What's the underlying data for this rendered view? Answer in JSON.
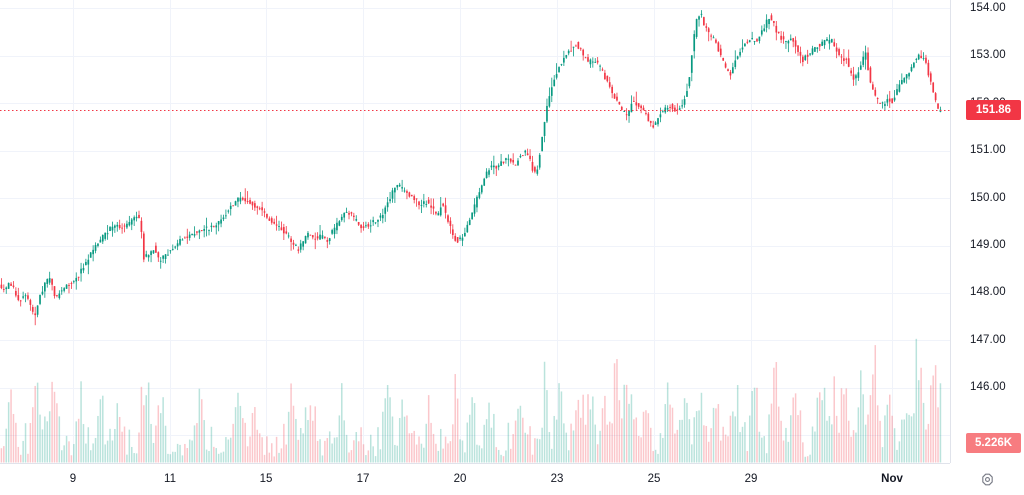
{
  "chart_data": {
    "type": "candlestick",
    "title": "",
    "last_price": "151.86",
    "last_volume": "5.226K",
    "x_axis": {
      "tick_labels": [
        "9",
        "11",
        "15",
        "17",
        "20",
        "23",
        "25",
        "29",
        "Nov"
      ],
      "tick_x": [
        73,
        170,
        266,
        363,
        460,
        557,
        654,
        751,
        892
      ]
    },
    "y_axis": {
      "tick_labels": [
        "154.00",
        "153.00",
        "152.00",
        "151.00",
        "150.00",
        "149.00",
        "148.00",
        "147.00",
        "146.00"
      ],
      "tick_prices": [
        154,
        153,
        152,
        151,
        150,
        149,
        148,
        147,
        146
      ],
      "grid_prices": [
        154,
        153,
        152,
        151,
        150,
        149,
        148,
        147,
        146,
        145
      ],
      "ylim": [
        144.42,
        154.17
      ]
    },
    "price_path_anchors": [
      [
        0,
        148.2
      ],
      [
        6,
        148.05
      ],
      [
        12,
        148.25
      ],
      [
        18,
        148.0
      ],
      [
        22,
        147.8
      ],
      [
        27,
        148.05
      ],
      [
        32,
        147.75
      ],
      [
        37,
        147.5
      ],
      [
        42,
        147.9
      ],
      [
        48,
        148.25
      ],
      [
        53,
        148.3
      ],
      [
        58,
        147.85
      ],
      [
        63,
        148.05
      ],
      [
        68,
        148.15
      ],
      [
        74,
        148.2
      ],
      [
        80,
        148.35
      ],
      [
        86,
        148.55
      ],
      [
        92,
        148.8
      ],
      [
        98,
        149.0
      ],
      [
        104,
        149.15
      ],
      [
        110,
        149.3
      ],
      [
        116,
        149.45
      ],
      [
        122,
        149.35
      ],
      [
        128,
        149.4
      ],
      [
        134,
        149.5
      ],
      [
        139,
        149.65
      ],
      [
        143,
        149.5
      ],
      [
        146,
        148.75
      ],
      [
        151,
        148.8
      ],
      [
        156,
        148.95
      ],
      [
        161,
        148.7
      ],
      [
        166,
        148.75
      ],
      [
        171,
        148.85
      ],
      [
        177,
        149.0
      ],
      [
        183,
        149.1
      ],
      [
        189,
        149.2
      ],
      [
        196,
        149.25
      ],
      [
        203,
        149.3
      ],
      [
        209,
        149.35
      ],
      [
        215,
        149.4
      ],
      [
        222,
        149.5
      ],
      [
        229,
        149.7
      ],
      [
        236,
        149.9
      ],
      [
        242,
        150.0
      ],
      [
        248,
        149.95
      ],
      [
        254,
        149.85
      ],
      [
        260,
        149.8
      ],
      [
        266,
        149.7
      ],
      [
        272,
        149.55
      ],
      [
        278,
        149.45
      ],
      [
        284,
        149.35
      ],
      [
        290,
        149.2
      ],
      [
        296,
        149.0
      ],
      [
        301,
        148.92
      ],
      [
        306,
        149.1
      ],
      [
        311,
        149.25
      ],
      [
        317,
        149.15
      ],
      [
        323,
        149.2
      ],
      [
        329,
        149.1
      ],
      [
        335,
        149.3
      ],
      [
        341,
        149.5
      ],
      [
        347,
        149.68
      ],
      [
        353,
        149.65
      ],
      [
        359,
        149.5
      ],
      [
        365,
        149.38
      ],
      [
        371,
        149.42
      ],
      [
        377,
        149.52
      ],
      [
        383,
        149.6
      ],
      [
        389,
        149.85
      ],
      [
        394,
        150.1
      ],
      [
        399,
        150.28
      ],
      [
        405,
        150.18
      ],
      [
        411,
        150.08
      ],
      [
        417,
        149.95
      ],
      [
        423,
        149.87
      ],
      [
        429,
        149.92
      ],
      [
        435,
        149.75
      ],
      [
        440,
        149.62
      ],
      [
        444,
        149.9
      ],
      [
        449,
        149.6
      ],
      [
        454,
        149.3
      ],
      [
        459,
        149.08
      ],
      [
        464,
        149.15
      ],
      [
        469,
        149.4
      ],
      [
        475,
        149.7
      ],
      [
        481,
        150.1
      ],
      [
        487,
        150.45
      ],
      [
        493,
        150.68
      ],
      [
        499,
        150.65
      ],
      [
        505,
        150.75
      ],
      [
        511,
        150.85
      ],
      [
        517,
        150.7
      ],
      [
        523,
        150.9
      ],
      [
        529,
        151.0
      ],
      [
        535,
        150.6
      ],
      [
        539,
        150.5
      ],
      [
        544,
        151.2
      ],
      [
        549,
        151.9
      ],
      [
        555,
        152.45
      ],
      [
        561,
        152.75
      ],
      [
        567,
        152.98
      ],
      [
        573,
        153.12
      ],
      [
        579,
        153.25
      ],
      [
        584,
        153.05
      ],
      [
        590,
        152.85
      ],
      [
        596,
        152.92
      ],
      [
        602,
        152.78
      ],
      [
        608,
        152.5
      ],
      [
        614,
        152.2
      ],
      [
        620,
        152.02
      ],
      [
        626,
        151.8
      ],
      [
        630,
        151.72
      ],
      [
        634,
        152.05
      ],
      [
        638,
        152.0
      ],
      [
        643,
        151.88
      ],
      [
        648,
        151.78
      ],
      [
        653,
        151.55
      ],
      [
        657,
        151.52
      ],
      [
        662,
        151.75
      ],
      [
        667,
        151.85
      ],
      [
        672,
        151.95
      ],
      [
        677,
        151.82
      ],
      [
        682,
        151.9
      ],
      [
        687,
        152.1
      ],
      [
        691,
        152.45
      ],
      [
        695,
        153.2
      ],
      [
        699,
        153.75
      ],
      [
        703,
        153.92
      ],
      [
        707,
        153.6
      ],
      [
        712,
        153.42
      ],
      [
        717,
        153.35
      ],
      [
        722,
        153.05
      ],
      [
        727,
        152.78
      ],
      [
        732,
        152.56
      ],
      [
        737,
        152.85
      ],
      [
        742,
        153.1
      ],
      [
        747,
        153.28
      ],
      [
        752,
        153.35
      ],
      [
        757,
        153.3
      ],
      [
        762,
        153.4
      ],
      [
        767,
        153.6
      ],
      [
        771,
        153.82
      ],
      [
        775,
        153.72
      ],
      [
        779,
        153.5
      ],
      [
        784,
        153.35
      ],
      [
        789,
        153.3
      ],
      [
        794,
        153.4
      ],
      [
        799,
        153.15
      ],
      [
        804,
        152.88
      ],
      [
        809,
        153.0
      ],
      [
        814,
        153.1
      ],
      [
        819,
        153.2
      ],
      [
        824,
        153.25
      ],
      [
        829,
        153.3
      ],
      [
        834,
        153.32
      ],
      [
        839,
        153.1
      ],
      [
        844,
        152.92
      ],
      [
        848,
        152.95
      ],
      [
        852,
        152.65
      ],
      [
        856,
        152.5
      ],
      [
        860,
        152.62
      ],
      [
        864,
        152.9
      ],
      [
        868,
        153.05
      ],
      [
        872,
        152.5
      ],
      [
        876,
        152.2
      ],
      [
        880,
        152.05
      ],
      [
        885,
        151.98
      ],
      [
        890,
        152.08
      ],
      [
        894,
        152.02
      ],
      [
        898,
        152.2
      ],
      [
        903,
        152.42
      ],
      [
        908,
        152.55
      ],
      [
        912,
        152.7
      ],
      [
        916,
        152.88
      ],
      [
        920,
        153.0
      ],
      [
        924,
        152.95
      ],
      [
        928,
        152.88
      ],
      [
        932,
        152.5
      ],
      [
        936,
        152.15
      ],
      [
        940,
        151.86
      ]
    ],
    "volume_spikes": [
      [
        10,
        52
      ],
      [
        38,
        85
      ],
      [
        52,
        60
      ],
      [
        80,
        48
      ],
      [
        100,
        55
      ],
      [
        118,
        62
      ],
      [
        145,
        105
      ],
      [
        160,
        48
      ],
      [
        200,
        54
      ],
      [
        236,
        58
      ],
      [
        255,
        46
      ],
      [
        292,
        60
      ],
      [
        310,
        48
      ],
      [
        340,
        52
      ],
      [
        388,
        72
      ],
      [
        405,
        52
      ],
      [
        430,
        46
      ],
      [
        455,
        58
      ],
      [
        472,
        48
      ],
      [
        490,
        52
      ],
      [
        520,
        56
      ],
      [
        545,
        65
      ],
      [
        560,
        63
      ],
      [
        578,
        70
      ],
      [
        590,
        68
      ],
      [
        605,
        52
      ],
      [
        617,
        85
      ],
      [
        628,
        80
      ],
      [
        645,
        58
      ],
      [
        668,
        52
      ],
      [
        685,
        58
      ],
      [
        700,
        72
      ],
      [
        715,
        60
      ],
      [
        735,
        56
      ],
      [
        755,
        58
      ],
      [
        776,
        92
      ],
      [
        795,
        52
      ],
      [
        820,
        75
      ],
      [
        835,
        58
      ],
      [
        845,
        65
      ],
      [
        860,
        70
      ],
      [
        874,
        90
      ],
      [
        890,
        55
      ],
      [
        905,
        58
      ],
      [
        918,
        98
      ],
      [
        930,
        62
      ],
      [
        938,
        48
      ]
    ],
    "colors": {
      "up": "#089981",
      "down": "#f23645",
      "volume_up": "rgba(8,153,129,0.28)",
      "volume_down": "rgba(242,54,69,0.28)",
      "grid": "#f0f3fa",
      "axis_text": "#131722",
      "price_line": "#f23645",
      "price_badge_bg": "#f23645",
      "volume_badge_bg": "#f77c80",
      "icon": "#787b86"
    }
  }
}
